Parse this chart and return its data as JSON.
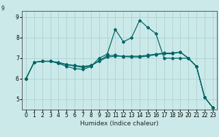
{
  "xlabel": "Humidex (Indice chaleur)",
  "background_color": "#cce9e9",
  "grid_color": "#aed4d4",
  "line_color": "#006666",
  "spine_color": "#555555",
  "xlim": [
    -0.5,
    23.5
  ],
  "ylim": [
    4.5,
    9.3
  ],
  "yticks": [
    5,
    6,
    7,
    8,
    9
  ],
  "xticks": [
    0,
    1,
    2,
    3,
    4,
    5,
    6,
    7,
    8,
    9,
    10,
    11,
    12,
    13,
    14,
    15,
    16,
    17,
    18,
    19,
    20,
    21,
    22,
    23
  ],
  "xtick_labels": [
    "0",
    "1",
    "2",
    "3",
    "4",
    "5",
    "6",
    "7",
    "8",
    "9",
    "10",
    "11",
    "12",
    "13",
    "14",
    "15",
    "16",
    "17",
    "18",
    "19",
    "20",
    "21",
    "22",
    "23"
  ],
  "series": [
    {
      "x": [
        0,
        1,
        2,
        3,
        4,
        5,
        6,
        7,
        8,
        9,
        10,
        11,
        12,
        13,
        14,
        15,
        16,
        17,
        18,
        19,
        20,
        21,
        22,
        23
      ],
      "y": [
        6.0,
        6.8,
        6.85,
        6.85,
        6.75,
        6.6,
        6.5,
        6.45,
        6.6,
        7.0,
        7.2,
        8.4,
        7.8,
        8.0,
        8.85,
        8.5,
        8.2,
        7.0,
        7.0,
        7.0,
        7.0,
        6.6,
        5.1,
        4.6
      ]
    },
    {
      "x": [
        0,
        1,
        2,
        3,
        4,
        5,
        6,
        7,
        8,
        9,
        10,
        11,
        12,
        13,
        14,
        15,
        16,
        17,
        18,
        19,
        20,
        21,
        22,
        23
      ],
      "y": [
        6.0,
        6.8,
        6.85,
        6.85,
        6.8,
        6.7,
        6.65,
        6.6,
        6.65,
        6.85,
        7.05,
        7.1,
        7.1,
        7.1,
        7.1,
        7.15,
        7.2,
        7.25,
        7.25,
        7.3,
        7.0,
        6.6,
        5.1,
        4.6
      ]
    },
    {
      "x": [
        0,
        1,
        2,
        3,
        4,
        5,
        6,
        7,
        8,
        9,
        10,
        11,
        12,
        13,
        14,
        15,
        16,
        17,
        18,
        19,
        20,
        21,
        22,
        23
      ],
      "y": [
        6.0,
        6.8,
        6.85,
        6.85,
        6.78,
        6.68,
        6.62,
        6.55,
        6.62,
        6.88,
        7.12,
        7.15,
        7.08,
        7.06,
        7.06,
        7.1,
        7.18,
        7.22,
        7.22,
        7.3,
        7.0,
        6.6,
        5.1,
        4.6
      ]
    }
  ],
  "ytick_label_9_outside": "9",
  "xlabel_fontsize": 6.5,
  "tick_fontsize": 5.5,
  "label_color": "#222222"
}
